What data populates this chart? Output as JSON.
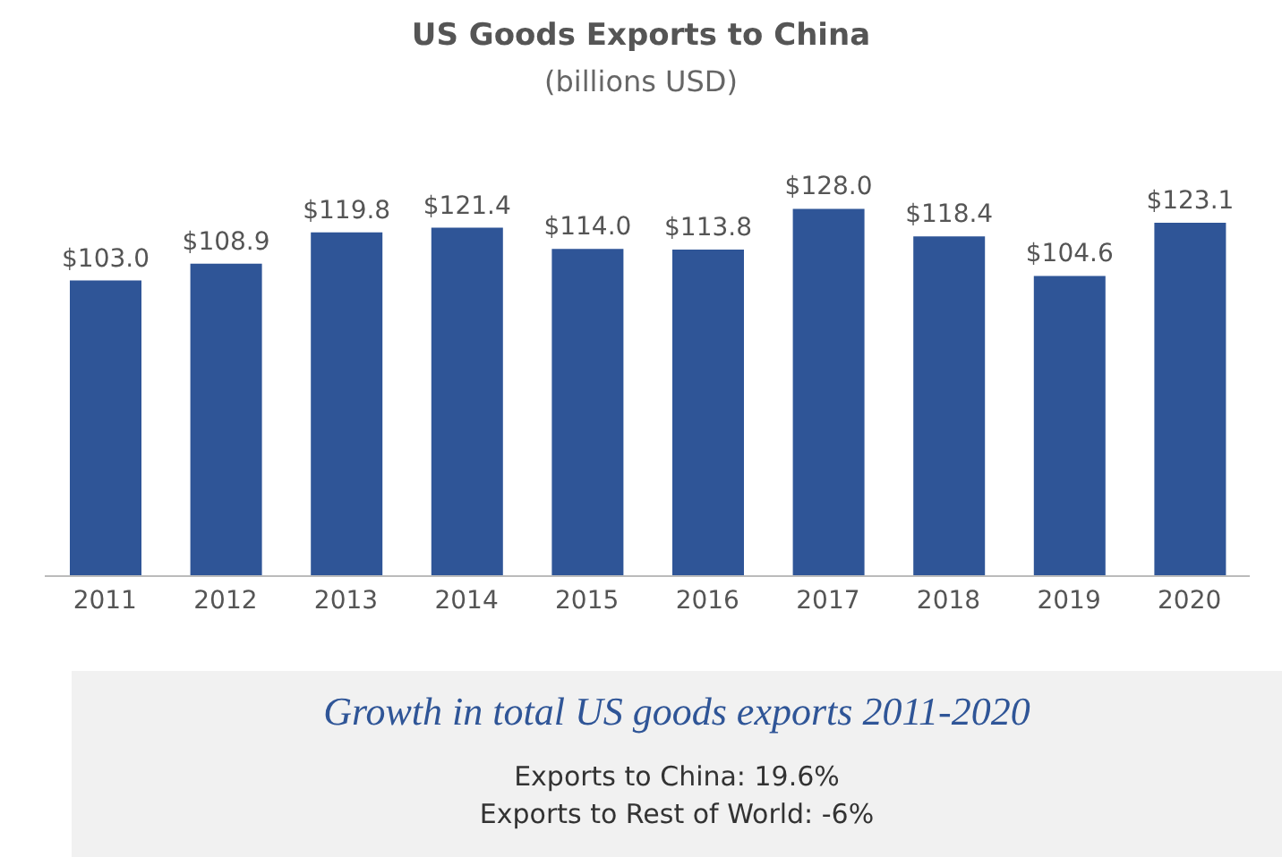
{
  "chart_data": {
    "type": "bar",
    "title": "US Goods Exports to China",
    "subtitle": "(billions USD)",
    "categories": [
      "2011",
      "2012",
      "2013",
      "2014",
      "2015",
      "2016",
      "2017",
      "2018",
      "2019",
      "2020"
    ],
    "values": [
      103.0,
      108.9,
      119.8,
      121.4,
      114.0,
      113.8,
      128.0,
      118.4,
      104.6,
      123.1
    ],
    "value_labels": [
      "$103.0",
      "$108.9",
      "$119.8",
      "$121.4",
      "$114.0",
      "$113.8",
      "$128.0",
      "$118.4",
      "$104.6",
      "$123.1"
    ],
    "color": "#2f5597",
    "annotations": [
      "Growth in total US goods exports 2011-2020",
      "Exports to China: 19.6%",
      "Exports to Rest of World: -6%"
    ]
  }
}
